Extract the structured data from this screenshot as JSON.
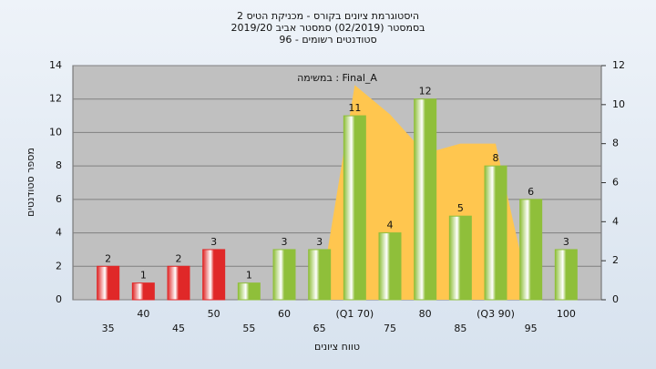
{
  "chart_data": {
    "type": "bar",
    "title": "היסטוגרמת ציונים בקורס - מכניקת הטיס 2",
    "subtitle": "בסמסטר  (02/2019)  סמסטר אביב 2019/20",
    "subtitle2": "סטודנטים רשומים - 96",
    "annotation": "במשימה : Final_A",
    "x_label": "טווח ציונים",
    "y_label": "מספר סטודנטים",
    "categories": [
      "35",
      "40",
      "45",
      "50",
      "55",
      "60",
      "65",
      "(Q1 70)",
      "75",
      "80",
      "85",
      "(Q3 90)",
      "95",
      "100"
    ],
    "values": [
      2,
      1,
      2,
      3,
      1,
      3,
      3,
      11,
      4,
      12,
      5,
      8,
      6,
      3
    ],
    "colors": [
      "#e02828",
      "#e02828",
      "#e02828",
      "#e02828",
      "#8fbf3a",
      "#8fbf3a",
      "#8fbf3a",
      "#8fbf3a",
      "#8fbf3a",
      "#8fbf3a",
      "#8fbf3a",
      "#8fbf3a",
      "#8fbf3a",
      "#8fbf3a"
    ],
    "area": {
      "color": "#ffc64f",
      "axis": "y2",
      "values": [
        null,
        null,
        null,
        null,
        null,
        null,
        0,
        11,
        9.5,
        7.5,
        8,
        8,
        0,
        null
      ]
    },
    "ylim": [
      0,
      14
    ],
    "yticks": [
      0,
      2,
      4,
      6,
      8,
      10,
      12,
      14
    ],
    "y2lim": [
      0,
      12
    ],
    "y2ticks": [
      0,
      2,
      4,
      6,
      8,
      10,
      12
    ],
    "grid": true
  }
}
